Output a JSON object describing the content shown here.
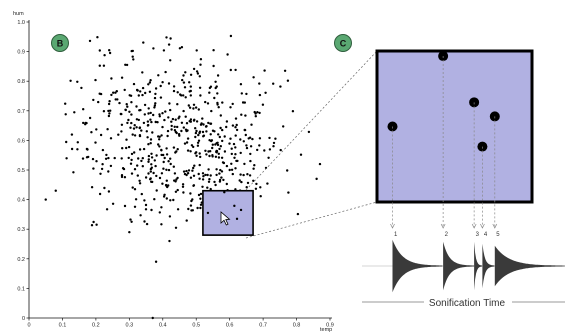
{
  "panel_b": {
    "badge": "B"
  },
  "panel_c": {
    "badge": "C"
  },
  "colors": {
    "badge": "#5aa872",
    "selection_fill": "#b1b1e2",
    "waveform": "#3a3a3a"
  },
  "icons": {
    "cursor": "arrow-cursor-icon"
  },
  "chart_data": {
    "type": "scatter",
    "xlabel": "temp",
    "ylabel": "hum",
    "xlim": [
      0,
      0.9
    ],
    "ylim": [
      0,
      1.0
    ],
    "x_ticks": [
      "0",
      "0.1",
      "0.2",
      "0.3",
      "0.4",
      "0.5",
      "0.6",
      "0.7",
      "0.8",
      "0.9"
    ],
    "y_ticks": [
      "0",
      "0.1",
      "0.2",
      "0.3",
      "0.4",
      "0.5",
      "0.6",
      "0.7",
      "0.8",
      "0.9",
      "1.0"
    ],
    "cluster": {
      "n": 620,
      "x_mean": 0.45,
      "x_sd": 0.16,
      "y_mean": 0.6,
      "y_sd": 0.15
    },
    "outliers": [
      {
        "x": 0.05,
        "y": 0.4
      },
      {
        "x": 0.08,
        "y": 0.43
      },
      {
        "x": 0.37,
        "y": 0.0
      },
      {
        "x": 0.38,
        "y": 0.19
      },
      {
        "x": 0.42,
        "y": 0.26
      },
      {
        "x": 0.3,
        "y": 0.29
      },
      {
        "x": 0.87,
        "y": 0.52
      },
      {
        "x": 0.86,
        "y": 0.47
      }
    ],
    "selection": {
      "x": [
        0.52,
        0.67
      ],
      "y": [
        0.28,
        0.43
      ]
    },
    "selected_points": [
      {
        "x": 0.535,
        "y": 0.355
      },
      {
        "x": 0.584,
        "y": 0.425
      },
      {
        "x": 0.614,
        "y": 0.379
      },
      {
        "x": 0.622,
        "y": 0.335
      },
      {
        "x": 0.634,
        "y": 0.365
      }
    ]
  },
  "sonification": {
    "label": "Sonification Time",
    "notes": [
      "1",
      "2",
      "3",
      "4",
      "5"
    ]
  }
}
